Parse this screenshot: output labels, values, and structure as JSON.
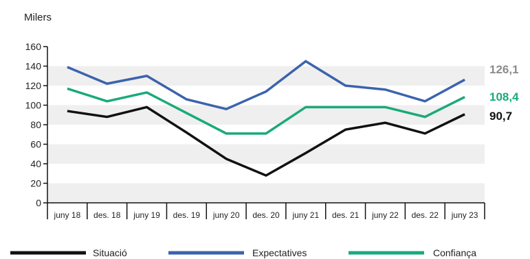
{
  "chart_data": {
    "type": "line",
    "unit_label": "Milers",
    "categories": [
      "juny 18",
      "des. 18",
      "juny 19",
      "des. 19",
      "juny 20",
      "des. 20",
      "juny 21",
      "des. 21",
      "juny 22",
      "des. 22",
      "juny 23"
    ],
    "ylim": [
      0,
      160
    ],
    "yticks": [
      0,
      20,
      40,
      60,
      80,
      100,
      120,
      140,
      160
    ],
    "grid_bands": true,
    "legend_position": "bottom",
    "series": [
      {
        "name": "Situació",
        "color": "#111111",
        "values": [
          94,
          88,
          98,
          72,
          45,
          28,
          51,
          75,
          82,
          71,
          90.7
        ],
        "end_label": "90,7",
        "end_label_color": "#111111"
      },
      {
        "name": "Expectatives",
        "color": "#3b63ad",
        "values": [
          139,
          122,
          130,
          106,
          96,
          114,
          145,
          120,
          116,
          104,
          126.1
        ],
        "end_label": "126,1",
        "end_label_color": "#8c8c8c"
      },
      {
        "name": "Confiança",
        "color": "#1aa97c",
        "values": [
          117,
          104,
          113,
          92,
          71,
          71,
          98,
          98,
          98,
          88,
          108.4
        ],
        "end_label": "108,4",
        "end_label_color": "#1aa97c"
      }
    ]
  }
}
